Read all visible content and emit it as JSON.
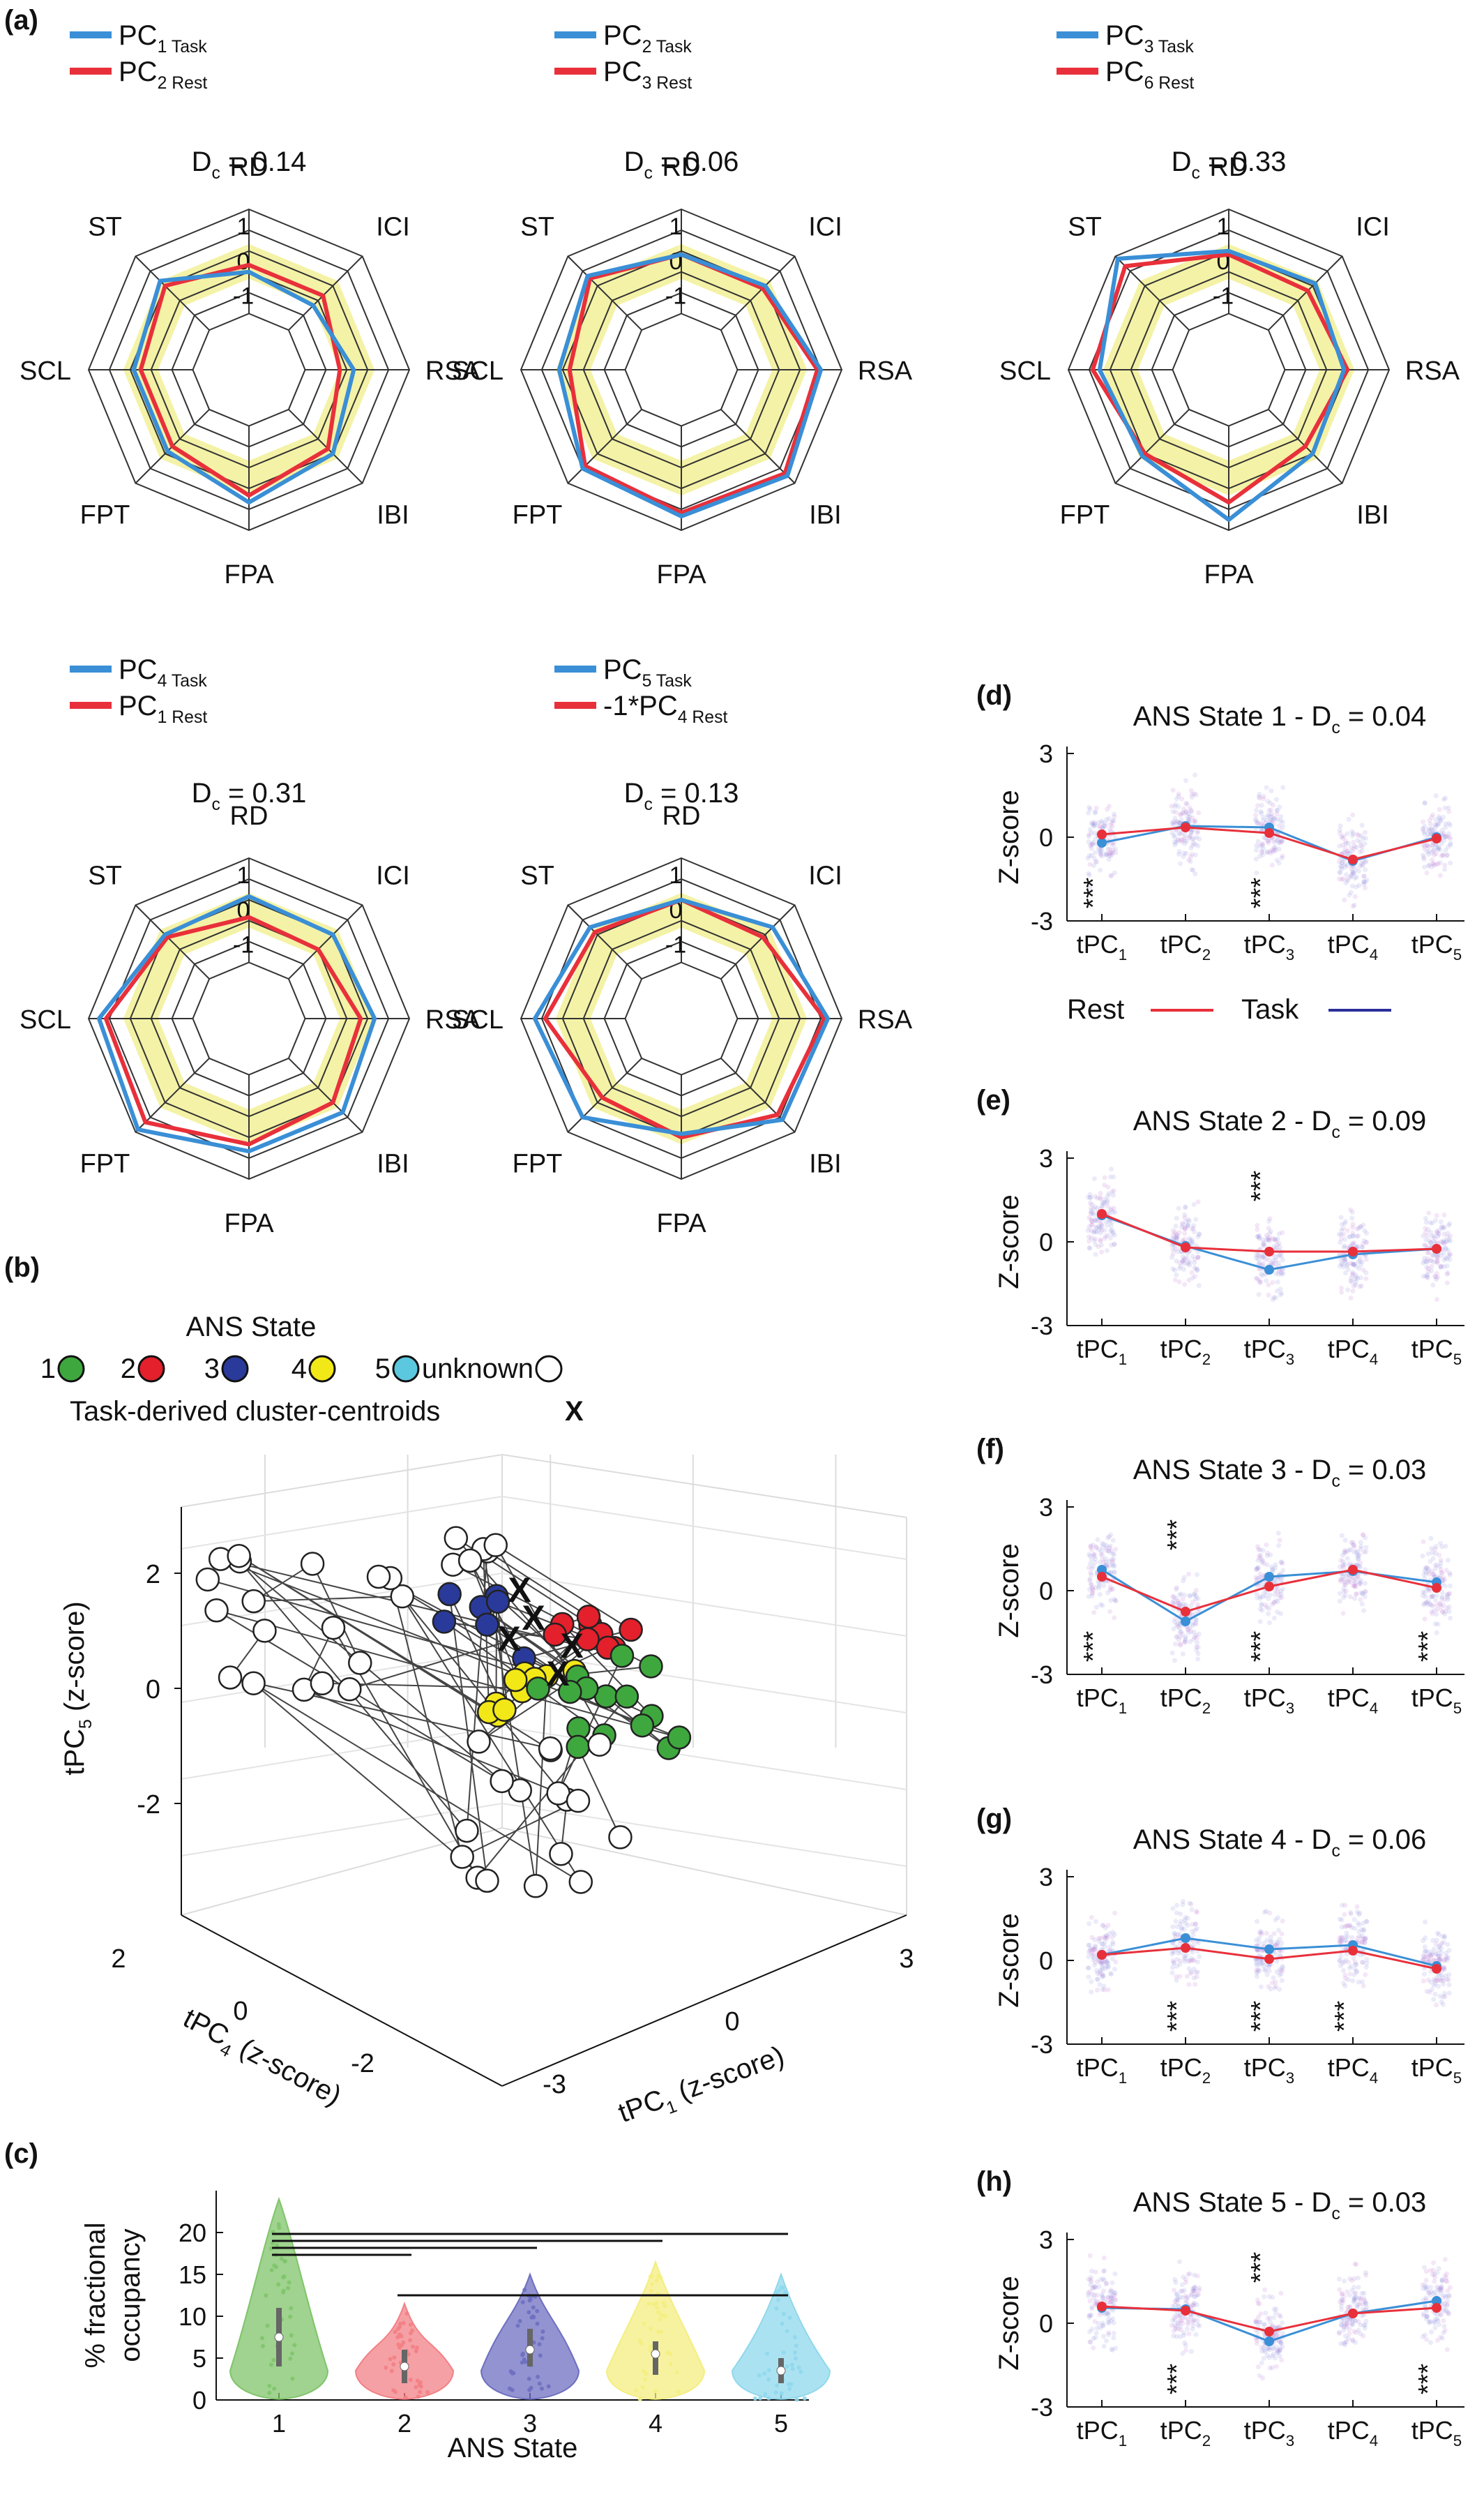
{
  "palette": {
    "task": "#3a8fd6",
    "rest": "#e8303b",
    "task_dark": "#2b2f9a",
    "yellow_fill": "#f4f2a6",
    "violin_green": "#7fc46a",
    "violin_red": "#f28085",
    "violin_blue": "#6e6fc0",
    "violin_yellow": "#f4ee80",
    "violin_cyan": "#8fd8ec"
  },
  "panel_letters": {
    "a": "(a)",
    "b": "(b)",
    "c": "(c)",
    "d": "(d)",
    "e": "(e)",
    "f": "(f)",
    "g": "(g)",
    "h": "(h)"
  },
  "radar": {
    "axes": [
      "RD",
      "ICI",
      "RSA",
      "IBI",
      "FPA",
      "FPT",
      "SCL",
      "ST"
    ],
    "ring_labels": [
      "1",
      "0",
      "-1"
    ],
    "rlim": [
      -2,
      1
    ],
    "plots": [
      {
        "title": "D",
        "title_sub": "c",
        "title_tail": " = 0.14",
        "legend": [
          {
            "main": "PC",
            "sub": "1 Task",
            "prefix": ""
          },
          {
            "main": "PC",
            "sub": "2 Rest",
            "prefix": ""
          }
        ],
        "task": [
          -0.8,
          -1.0,
          -0.6,
          -0.2,
          0.2,
          -0.3,
          -0.3,
          0.0
        ],
        "rest": [
          -0.6,
          -0.6,
          -1.0,
          -0.4,
          0.0,
          -0.5,
          -0.5,
          -0.2
        ]
      },
      {
        "title": "D",
        "title_sub": "c",
        "title_tail": " = 0.06",
        "legend": [
          {
            "main": "PC",
            "sub": "2 Task",
            "prefix": ""
          },
          {
            "main": "PC",
            "sub": "3 Rest",
            "prefix": ""
          }
        ],
        "task": [
          -0.3,
          -0.2,
          0.4,
          0.7,
          0.6,
          0.4,
          -0.1,
          0.2
        ],
        "rest": [
          -0.3,
          -0.3,
          0.3,
          0.6,
          0.5,
          0.3,
          -0.4,
          0.1
        ]
      },
      {
        "title": "D",
        "title_sub": "c",
        "title_tail": " = 0.33",
        "legend": [
          {
            "main": "PC",
            "sub": "3 Task",
            "prefix": ""
          },
          {
            "main": "PC",
            "sub": "6 Rest",
            "prefix": ""
          }
        ],
        "task": [
          -0.2,
          -0.1,
          -0.3,
          -0.2,
          0.7,
          -0.1,
          0.1,
          0.9
        ],
        "rest": [
          -0.3,
          -0.4,
          -0.2,
          -0.5,
          0.2,
          -0.2,
          0.3,
          0.6
        ]
      },
      {
        "title": "D",
        "title_sub": "c",
        "title_tail": " = 0.31",
        "legend": [
          {
            "main": "PC",
            "sub": "4 Task",
            "prefix": ""
          },
          {
            "main": "PC",
            "sub": "1 Rest",
            "prefix": ""
          }
        ],
        "task": [
          -0.1,
          -0.2,
          0.0,
          0.2,
          0.2,
          0.9,
          0.7,
          -0.2
        ],
        "rest": [
          -0.7,
          -0.8,
          -0.4,
          -0.2,
          0.0,
          0.6,
          0.5,
          -0.3
        ]
      },
      {
        "title": "D",
        "title_sub": "c",
        "title_tail": " = 0.13",
        "legend": [
          {
            "main": "PC",
            "sub": "5 Task",
            "prefix": ""
          },
          {
            "main": "PC",
            "sub": "4 Rest",
            "prefix": "-1*"
          }
        ],
        "task": [
          -0.2,
          0.1,
          0.6,
          0.5,
          -0.3,
          0.4,
          0.6,
          0.1
        ],
        "rest": [
          -0.2,
          -0.3,
          0.5,
          0.3,
          -0.2,
          -0.4,
          0.3,
          -0.1
        ]
      }
    ]
  },
  "scatter3d": {
    "legend_title": "ANS State",
    "states": [
      {
        "label": "1",
        "color": "#3ea83e"
      },
      {
        "label": "2",
        "color": "#e3202b"
      },
      {
        "label": "3",
        "color": "#2a3a9a"
      },
      {
        "label": "4",
        "color": "#f3e817"
      },
      {
        "label": "5",
        "color": "#5cc8e0"
      },
      {
        "label": "unknown",
        "color": "#ffffff"
      }
    ],
    "centroid_label": "Task-derived cluster-centroids",
    "centroid_mark": "X",
    "zlabel_main": "tPC",
    "zlabel_sub": "5",
    "zlabel_tail": " (z-score)",
    "ylabel_main": "tPC",
    "ylabel_sub": "4",
    "ylabel_tail": " (z-score)",
    "xlabel_main": "tPC",
    "xlabel_sub": "1",
    "xlabel_tail": " (z-score)",
    "ztick_labels": [
      "2",
      "0",
      "-2"
    ],
    "ytick_labels": [
      "2",
      "0",
      "-2"
    ],
    "xtick_labels": [
      "-3",
      "0",
      "3"
    ]
  },
  "violin": {
    "xlabel": "ANS State",
    "ylabel_line1": "% fractional",
    "ylabel_line2": "occupancy",
    "ylim": [
      0,
      25
    ],
    "yticks": [
      0,
      5,
      10,
      15,
      20
    ],
    "categories": [
      "1",
      "2",
      "3",
      "4",
      "5"
    ],
    "colors": [
      "#7fc46a",
      "#f28085",
      "#6e6fc0",
      "#f4ee80",
      "#8fd8ec"
    ],
    "max": [
      24,
      11.5,
      15,
      16.5,
      15
    ],
    "median": [
      7.5,
      4,
      6,
      5.5,
      3.5
    ],
    "q1": [
      4,
      2,
      4,
      3,
      2
    ],
    "q3": [
      11,
      6,
      8.5,
      7,
      5
    ],
    "significance_pairs": [
      [
        1,
        2
      ],
      [
        1,
        3
      ],
      [
        1,
        4
      ],
      [
        1,
        5
      ],
      [
        2,
        3
      ],
      [
        3,
        5
      ]
    ]
  },
  "line_panels": {
    "ylabel": "Z-score",
    "ylim": [
      -3,
      3
    ],
    "ytick_labels": [
      "3",
      "0",
      "-3"
    ],
    "xtick_main": "tPC",
    "xtick_subs": [
      "1",
      "2",
      "3",
      "4",
      "5"
    ],
    "star_text": "***",
    "legend": {
      "rest": "Rest",
      "task": "Task"
    },
    "panels": [
      {
        "letter": "(d)",
        "title_head": "ANS State 1 - D",
        "title_sub": "c",
        "title_tail": " = 0.04",
        "rest": [
          0.1,
          0.35,
          0.15,
          -0.8,
          -0.05
        ],
        "task": [
          -0.2,
          0.4,
          0.35,
          -0.85,
          0.0
        ],
        "stars": [
          {
            "index": 0,
            "pos": "below"
          },
          {
            "index": 2,
            "pos": "below"
          }
        ]
      },
      {
        "letter": "(e)",
        "title_head": "ANS State 2 - D",
        "title_sub": "c",
        "title_tail": " = 0.09",
        "rest": [
          1.0,
          -0.2,
          -0.35,
          -0.35,
          -0.25
        ],
        "task": [
          0.95,
          -0.15,
          -1.0,
          -0.45,
          -0.25
        ],
        "stars": [
          {
            "index": 2,
            "pos": "above"
          }
        ]
      },
      {
        "letter": "(f)",
        "title_head": "ANS State 3 - D",
        "title_sub": "c",
        "title_tail": " = 0.03",
        "rest": [
          0.5,
          -0.75,
          0.15,
          0.75,
          0.1
        ],
        "task": [
          0.75,
          -1.1,
          0.5,
          0.7,
          0.3
        ],
        "stars": [
          {
            "index": 0,
            "pos": "below"
          },
          {
            "index": 1,
            "pos": "above"
          },
          {
            "index": 2,
            "pos": "below"
          },
          {
            "index": 4,
            "pos": "below"
          }
        ]
      },
      {
        "letter": "(g)",
        "title_head": "ANS State 4 - D",
        "title_sub": "c",
        "title_tail": " = 0.06",
        "rest": [
          0.2,
          0.45,
          0.05,
          0.35,
          -0.3
        ],
        "task": [
          0.2,
          0.8,
          0.4,
          0.55,
          -0.2
        ],
        "stars": [
          {
            "index": 1,
            "pos": "below"
          },
          {
            "index": 2,
            "pos": "below"
          },
          {
            "index": 3,
            "pos": "below"
          }
        ]
      },
      {
        "letter": "(h)",
        "title_head": "ANS State 5 - D",
        "title_sub": "c",
        "title_tail": " = 0.03",
        "rest": [
          0.6,
          0.45,
          -0.3,
          0.35,
          0.55
        ],
        "task": [
          0.55,
          0.5,
          -0.65,
          0.35,
          0.8
        ],
        "stars": [
          {
            "index": 1,
            "pos": "below"
          },
          {
            "index": 2,
            "pos": "above"
          },
          {
            "index": 4,
            "pos": "below"
          }
        ]
      }
    ]
  },
  "chart_data": [
    {
      "type": "radar",
      "title": "Dc = 0.14",
      "axes": [
        "RD",
        "ICI",
        "RSA",
        "IBI",
        "FPA",
        "FPT",
        "SCL",
        "ST"
      ],
      "series": [
        {
          "name": "PC1 Task",
          "values": [
            -0.8,
            -1.0,
            -0.6,
            -0.2,
            0.2,
            -0.3,
            -0.3,
            0.0
          ]
        },
        {
          "name": "PC2 Rest",
          "values": [
            -0.6,
            -0.6,
            -1.0,
            -0.4,
            0.0,
            -0.5,
            -0.5,
            -0.2
          ]
        }
      ]
    },
    {
      "type": "radar",
      "title": "Dc = 0.06",
      "axes": [
        "RD",
        "ICI",
        "RSA",
        "IBI",
        "FPA",
        "FPT",
        "SCL",
        "ST"
      ],
      "series": [
        {
          "name": "PC2 Task",
          "values": [
            -0.3,
            -0.2,
            0.4,
            0.7,
            0.6,
            0.4,
            -0.1,
            0.2
          ]
        },
        {
          "name": "PC3 Rest",
          "values": [
            -0.3,
            -0.3,
            0.3,
            0.6,
            0.5,
            0.3,
            -0.4,
            0.1
          ]
        }
      ]
    },
    {
      "type": "radar",
      "title": "Dc = 0.33",
      "axes": [
        "RD",
        "ICI",
        "RSA",
        "IBI",
        "FPA",
        "FPT",
        "SCL",
        "ST"
      ],
      "series": [
        {
          "name": "PC3 Task",
          "values": [
            -0.2,
            -0.1,
            -0.3,
            -0.2,
            0.7,
            -0.1,
            0.1,
            0.9
          ]
        },
        {
          "name": "PC6 Rest",
          "values": [
            -0.3,
            -0.4,
            -0.2,
            -0.5,
            0.2,
            -0.2,
            0.3,
            0.6
          ]
        }
      ]
    },
    {
      "type": "radar",
      "title": "Dc = 0.31",
      "axes": [
        "RD",
        "ICI",
        "RSA",
        "IBI",
        "FPA",
        "FPT",
        "SCL",
        "ST"
      ],
      "series": [
        {
          "name": "PC4 Task",
          "values": [
            -0.1,
            -0.2,
            0.0,
            0.2,
            0.2,
            0.9,
            0.7,
            -0.2
          ]
        },
        {
          "name": "PC1 Rest",
          "values": [
            -0.7,
            -0.8,
            -0.4,
            -0.2,
            0.0,
            0.6,
            0.5,
            -0.3
          ]
        }
      ]
    },
    {
      "type": "radar",
      "title": "Dc = 0.13",
      "axes": [
        "RD",
        "ICI",
        "RSA",
        "IBI",
        "FPA",
        "FPT",
        "SCL",
        "ST"
      ],
      "series": [
        {
          "name": "PC5 Task",
          "values": [
            -0.2,
            0.1,
            0.6,
            0.5,
            -0.3,
            0.4,
            0.6,
            0.1
          ]
        },
        {
          "name": "-1*PC4 Rest",
          "values": [
            -0.2,
            -0.3,
            0.5,
            0.3,
            -0.2,
            -0.4,
            0.3,
            -0.1
          ]
        }
      ]
    },
    {
      "type": "scatter",
      "title": "",
      "xlabel": "tPC1 (z-score)",
      "ylabel": "tPC4 (z-score)",
      "zlabel": "tPC5 (z-score)"
    },
    {
      "type": "bar",
      "title": "",
      "xlabel": "ANS State",
      "ylabel": "% fractional occupancy",
      "categories": [
        "1",
        "2",
        "3",
        "4",
        "5"
      ],
      "values": [
        7.5,
        4,
        6,
        5.5,
        3.5
      ],
      "ylim": [
        0,
        25
      ]
    },
    {
      "type": "line",
      "title": "ANS State 1 - Dc = 0.04",
      "categories": [
        "tPC1",
        "tPC2",
        "tPC3",
        "tPC4",
        "tPC5"
      ],
      "ylim": [
        -3,
        3
      ],
      "series": [
        {
          "name": "Rest",
          "values": [
            0.1,
            0.35,
            0.15,
            -0.8,
            -0.05
          ]
        },
        {
          "name": "Task",
          "values": [
            -0.2,
            0.4,
            0.35,
            -0.85,
            0.0
          ]
        }
      ]
    },
    {
      "type": "line",
      "title": "ANS State 2 - Dc = 0.09",
      "categories": [
        "tPC1",
        "tPC2",
        "tPC3",
        "tPC4",
        "tPC5"
      ],
      "ylim": [
        -3,
        3
      ],
      "series": [
        {
          "name": "Rest",
          "values": [
            1.0,
            -0.2,
            -0.35,
            -0.35,
            -0.25
          ]
        },
        {
          "name": "Task",
          "values": [
            0.95,
            -0.15,
            -1.0,
            -0.45,
            -0.25
          ]
        }
      ]
    },
    {
      "type": "line",
      "title": "ANS State 3 - Dc = 0.03",
      "categories": [
        "tPC1",
        "tPC2",
        "tPC3",
        "tPC4",
        "tPC5"
      ],
      "ylim": [
        -3,
        3
      ],
      "series": [
        {
          "name": "Rest",
          "values": [
            0.5,
            -0.75,
            0.15,
            0.75,
            0.1
          ]
        },
        {
          "name": "Task",
          "values": [
            0.75,
            -1.1,
            0.5,
            0.7,
            0.3
          ]
        }
      ]
    },
    {
      "type": "line",
      "title": "ANS State 4 - Dc = 0.06",
      "categories": [
        "tPC1",
        "tPC2",
        "tPC3",
        "tPC4",
        "tPC5"
      ],
      "ylim": [
        -3,
        3
      ],
      "series": [
        {
          "name": "Rest",
          "values": [
            0.2,
            0.45,
            0.05,
            0.35,
            -0.3
          ]
        },
        {
          "name": "Task",
          "values": [
            0.2,
            0.8,
            0.4,
            0.55,
            -0.2
          ]
        }
      ]
    },
    {
      "type": "line",
      "title": "ANS State 5 - Dc = 0.03",
      "categories": [
        "tPC1",
        "tPC2",
        "tPC3",
        "tPC4",
        "tPC5"
      ],
      "ylim": [
        -3,
        3
      ],
      "series": [
        {
          "name": "Rest",
          "values": [
            0.6,
            0.45,
            -0.3,
            0.35,
            0.55
          ]
        },
        {
          "name": "Task",
          "values": [
            0.55,
            0.5,
            -0.65,
            0.35,
            0.8
          ]
        }
      ]
    }
  ]
}
